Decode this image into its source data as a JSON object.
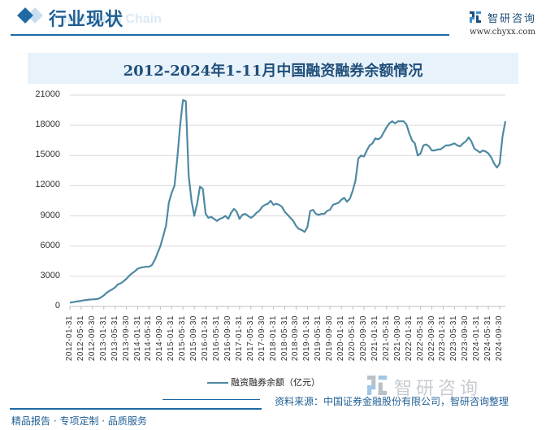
{
  "header": {
    "section_title": "行业现状",
    "ghost_text": "Industrial Chain",
    "brand_name": "智研咨询",
    "brand_url": "www.chyxx.com"
  },
  "chart_title": "2012-2024年1-11月中国融资融券余额情况",
  "legend": {
    "label": "融资融券余额（亿元）",
    "color": "#4f89a3"
  },
  "watermark": "智研咨询",
  "footer": {
    "tagline": "精品报告 · 专项定制 · 品质服务",
    "source": "资料来源：中国证券金融股份有限公司，智研咨询整理"
  },
  "colors": {
    "accent": "#1f6aa5",
    "line": "#4f89a3",
    "grid": "#d9d9d9",
    "title_band": "#e8f2fa"
  },
  "chart_data": {
    "type": "line",
    "title": "2012-2024年1-11月中国融资融券余额情况",
    "xlabel": "",
    "ylabel": "融资融券余额（亿元）",
    "ylim": [
      0,
      21000
    ],
    "yticks": [
      0,
      3000,
      6000,
      9000,
      12000,
      15000,
      18000,
      21000
    ],
    "grid": true,
    "legend_position": "bottom",
    "x_tick_labels": [
      "2012-01-31",
      "2012-05-31",
      "2012-09-30",
      "2013-01-31",
      "2013-05-31",
      "2013-09-30",
      "2014-01-31",
      "2014-05-31",
      "2014-09-30",
      "2015-01-31",
      "2015-05-31",
      "2015-09-30",
      "2016-01-31",
      "2016-05-31",
      "2016-09-30",
      "2017-01-31",
      "2017-05-31",
      "2017-09-30",
      "2018-01-31",
      "2018-05-31",
      "2018-09-30",
      "2019-01-31",
      "2019-05-31",
      "2019-09-30",
      "2020-01-31",
      "2020-05-31",
      "2020-09-30",
      "2021-01-31",
      "2021-05-31",
      "2021-09-30",
      "2022-01-31",
      "2022-05-31",
      "2022-09-30",
      "2023-01-31",
      "2023-05-31",
      "2023-09-30",
      "2024-01-31",
      "2024-05-31",
      "2024-09-30"
    ],
    "x_start": "2012-01",
    "x_end": "2024-11",
    "frequency": "monthly",
    "series": [
      {
        "name": "融资融券余额（亿元）",
        "values": [
          380,
          420,
          480,
          520,
          560,
          610,
          650,
          690,
          700,
          720,
          760,
          900,
          1100,
          1350,
          1550,
          1700,
          1900,
          2200,
          2300,
          2500,
          2750,
          3050,
          3300,
          3500,
          3750,
          3850,
          3900,
          3950,
          3950,
          4100,
          4600,
          5300,
          6000,
          7000,
          8000,
          10300,
          11300,
          12000,
          14800,
          18000,
          20500,
          20400,
          13000,
          10500,
          9000,
          10200,
          11900,
          11700,
          9200,
          8800,
          8900,
          8700,
          8500,
          8700,
          8800,
          9000,
          8700,
          9300,
          9700,
          9400,
          8700,
          9100,
          9200,
          9000,
          8800,
          9000,
          9300,
          9500,
          9900,
          10100,
          10200,
          10500,
          10100,
          10200,
          10100,
          9900,
          9400,
          9100,
          8800,
          8500,
          8000,
          7700,
          7600,
          7400,
          7900,
          9500,
          9600,
          9200,
          9100,
          9200,
          9200,
          9500,
          9600,
          10100,
          10200,
          10300,
          10600,
          10800,
          10400,
          10700,
          11500,
          12500,
          14700,
          15000,
          14900,
          15500,
          16000,
          16200,
          16700,
          16600,
          16800,
          17300,
          17800,
          18200,
          18400,
          18200,
          18400,
          18400,
          18400,
          18100,
          17200,
          16500,
          16200,
          15000,
          15200,
          16000,
          16100,
          15900,
          15500,
          15500,
          15600,
          15600,
          15800,
          16000,
          16000,
          16100,
          16200,
          16000,
          15900,
          16200,
          16400,
          16800,
          16400,
          15700,
          15500,
          15300,
          15500,
          15400,
          15200,
          14800,
          14200,
          13800,
          14200,
          16900,
          18400
        ]
      }
    ]
  }
}
